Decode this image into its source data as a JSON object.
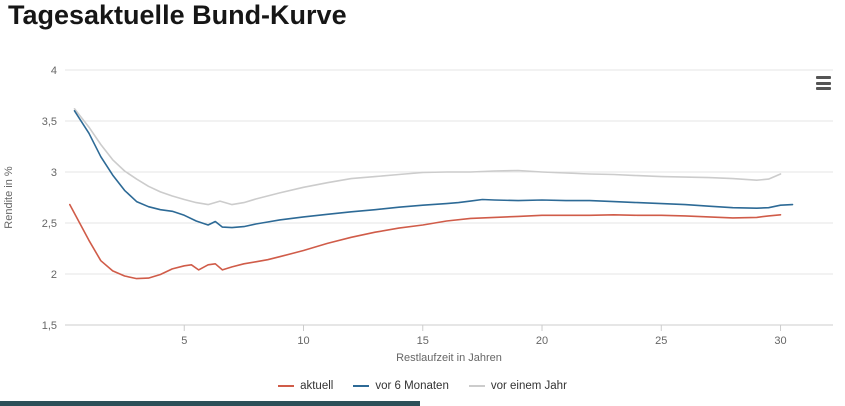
{
  "title": "Tagesaktuelle Bund-Kurve",
  "context_menu": {
    "aria_label": "Chart-Menü"
  },
  "colors": {
    "accent_red": "#d05c49",
    "accent_blue": "#2d6a96",
    "accent_gray": "#cccccc",
    "gridline": "#e6e6e6",
    "axis_line": "#cccccc",
    "tick_text": "#666666",
    "footer_bar": "#2c4f58"
  },
  "chart_data": {
    "type": "line",
    "title": "Tagesaktuelle Bund-Kurve",
    "xlabel": "Restlaufzeit in Jahren",
    "ylabel": "Rendite in %",
    "xlim": [
      0,
      32.2
    ],
    "ylim": [
      1.5,
      4
    ],
    "xticks": [
      5,
      10,
      15,
      20,
      25,
      30
    ],
    "yticks": [
      {
        "v": 1.5,
        "label": "1,5"
      },
      {
        "v": 2,
        "label": "2"
      },
      {
        "v": 2.5,
        "label": "2,5"
      },
      {
        "v": 3,
        "label": "3"
      },
      {
        "v": 3.5,
        "label": "3,5"
      },
      {
        "v": 4,
        "label": "4"
      }
    ],
    "grid": "horizontal",
    "legend_position": "bottom",
    "series": [
      {
        "name": "aktuell",
        "color": "#d05c49",
        "points": [
          [
            0.2,
            2.68
          ],
          [
            0.5,
            2.55
          ],
          [
            1,
            2.33
          ],
          [
            1.5,
            2.13
          ],
          [
            2,
            2.03
          ],
          [
            2.5,
            1.98
          ],
          [
            3,
            1.955
          ],
          [
            3.5,
            1.96
          ],
          [
            4,
            1.995
          ],
          [
            4.5,
            2.05
          ],
          [
            5,
            2.08
          ],
          [
            5.3,
            2.09
          ],
          [
            5.6,
            2.04
          ],
          [
            6,
            2.09
          ],
          [
            6.3,
            2.1
          ],
          [
            6.6,
            2.04
          ],
          [
            7,
            2.07
          ],
          [
            7.5,
            2.1
          ],
          [
            8,
            2.12
          ],
          [
            8.5,
            2.14
          ],
          [
            9,
            2.17
          ],
          [
            9.5,
            2.2
          ],
          [
            10,
            2.23
          ],
          [
            11,
            2.3
          ],
          [
            12,
            2.36
          ],
          [
            13,
            2.41
          ],
          [
            14,
            2.45
          ],
          [
            15,
            2.48
          ],
          [
            16,
            2.52
          ],
          [
            17,
            2.545
          ],
          [
            18,
            2.555
          ],
          [
            19,
            2.565
          ],
          [
            20,
            2.575
          ],
          [
            21,
            2.575
          ],
          [
            22,
            2.575
          ],
          [
            23,
            2.58
          ],
          [
            24,
            2.575
          ],
          [
            25,
            2.575
          ],
          [
            26,
            2.57
          ],
          [
            27,
            2.56
          ],
          [
            28,
            2.55
          ],
          [
            29,
            2.555
          ],
          [
            29.5,
            2.57
          ],
          [
            30,
            2.58
          ]
        ]
      },
      {
        "name": "vor 6 Monaten",
        "color": "#2d6a96",
        "points": [
          [
            0.4,
            3.6
          ],
          [
            1,
            3.38
          ],
          [
            1.5,
            3.15
          ],
          [
            2,
            2.97
          ],
          [
            2.5,
            2.82
          ],
          [
            3,
            2.71
          ],
          [
            3.5,
            2.66
          ],
          [
            4,
            2.63
          ],
          [
            4.5,
            2.615
          ],
          [
            5,
            2.575
          ],
          [
            5.5,
            2.52
          ],
          [
            6,
            2.48
          ],
          [
            6.3,
            2.515
          ],
          [
            6.6,
            2.46
          ],
          [
            7,
            2.455
          ],
          [
            7.5,
            2.465
          ],
          [
            8,
            2.49
          ],
          [
            8.5,
            2.51
          ],
          [
            9,
            2.53
          ],
          [
            10,
            2.56
          ],
          [
            11,
            2.585
          ],
          [
            12,
            2.61
          ],
          [
            13,
            2.63
          ],
          [
            14,
            2.655
          ],
          [
            15,
            2.675
          ],
          [
            16,
            2.69
          ],
          [
            16.5,
            2.7
          ],
          [
            17,
            2.715
          ],
          [
            17.5,
            2.73
          ],
          [
            18,
            2.725
          ],
          [
            19,
            2.72
          ],
          [
            20,
            2.725
          ],
          [
            21,
            2.72
          ],
          [
            22,
            2.72
          ],
          [
            23,
            2.71
          ],
          [
            24,
            2.7
          ],
          [
            25,
            2.69
          ],
          [
            26,
            2.68
          ],
          [
            27,
            2.665
          ],
          [
            28,
            2.65
          ],
          [
            29,
            2.645
          ],
          [
            29.5,
            2.65
          ],
          [
            30,
            2.675
          ],
          [
            30.5,
            2.68
          ]
        ]
      },
      {
        "name": "vor einem Jahr",
        "color": "#cccccc",
        "points": [
          [
            0.4,
            3.62
          ],
          [
            1,
            3.44
          ],
          [
            1.5,
            3.27
          ],
          [
            2,
            3.12
          ],
          [
            2.5,
            3.01
          ],
          [
            3,
            2.93
          ],
          [
            3.5,
            2.86
          ],
          [
            4,
            2.805
          ],
          [
            4.5,
            2.765
          ],
          [
            5,
            2.73
          ],
          [
            5.5,
            2.7
          ],
          [
            6,
            2.68
          ],
          [
            6.5,
            2.715
          ],
          [
            7,
            2.68
          ],
          [
            7.5,
            2.7
          ],
          [
            8,
            2.735
          ],
          [
            9,
            2.795
          ],
          [
            10,
            2.85
          ],
          [
            11,
            2.895
          ],
          [
            12,
            2.935
          ],
          [
            13,
            2.955
          ],
          [
            14,
            2.975
          ],
          [
            15,
            2.995
          ],
          [
            16,
            3.0
          ],
          [
            17,
            3.0
          ],
          [
            18,
            3.01
          ],
          [
            19,
            3.015
          ],
          [
            20,
            3.0
          ],
          [
            21,
            2.99
          ],
          [
            22,
            2.98
          ],
          [
            23,
            2.975
          ],
          [
            24,
            2.965
          ],
          [
            25,
            2.955
          ],
          [
            26,
            2.95
          ],
          [
            27,
            2.945
          ],
          [
            28,
            2.935
          ],
          [
            29,
            2.92
          ],
          [
            29.5,
            2.93
          ],
          [
            30,
            2.98
          ]
        ]
      }
    ]
  }
}
